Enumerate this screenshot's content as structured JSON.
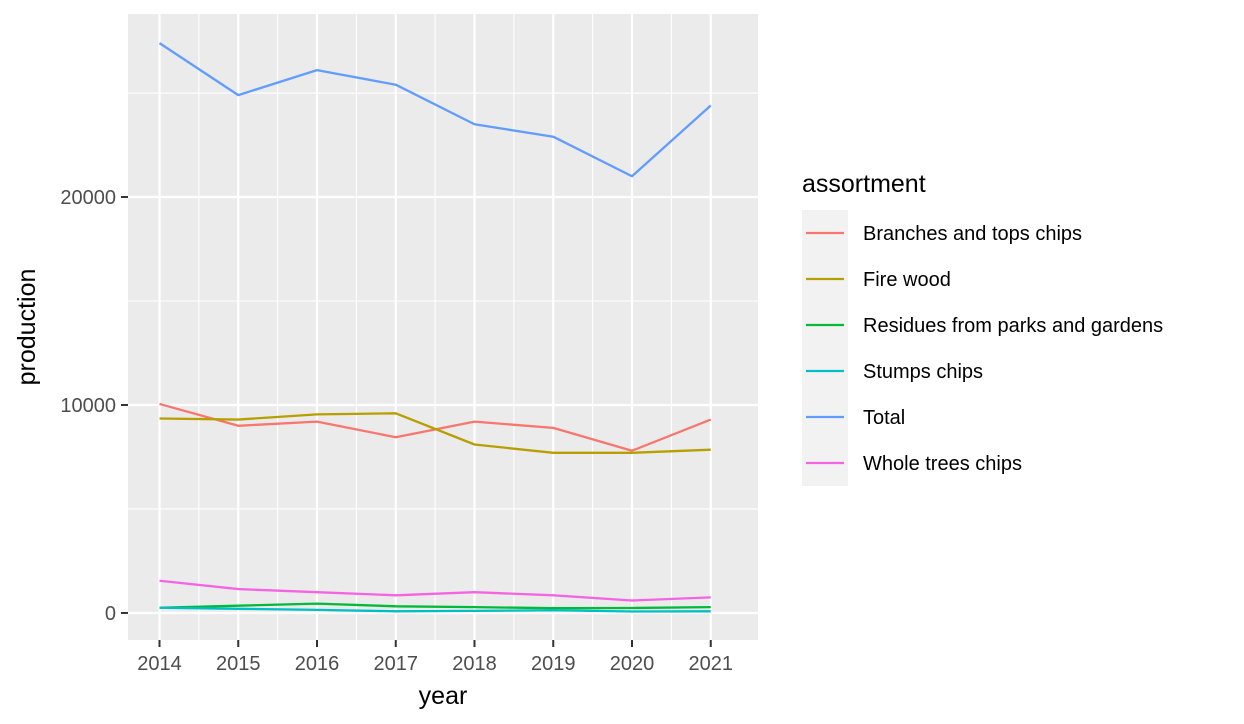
{
  "chart_data": {
    "type": "line",
    "xlabel": "year",
    "ylabel": "production",
    "x": [
      2014,
      2015,
      2016,
      2017,
      2018,
      2019,
      2020,
      2021
    ],
    "xlim": [
      2013.6,
      2021.6
    ],
    "ylim": [
      -1300,
      28800
    ],
    "y_ticks_major": [
      0,
      10000,
      20000
    ],
    "y_ticks_major_labels": [
      "0",
      "10000",
      "20000"
    ],
    "y_ticks_minor": [
      5000,
      15000,
      25000
    ],
    "x_tick_labels": [
      "2014",
      "2015",
      "2016",
      "2017",
      "2018",
      "2019",
      "2020",
      "2021"
    ],
    "grid": true,
    "legend": {
      "title": "assortment",
      "placement": "right"
    },
    "series": [
      {
        "name": "Branches and tops chips",
        "color": "#F8766D",
        "values": [
          10050,
          9000,
          9200,
          8450,
          9200,
          8900,
          7800,
          9300
        ]
      },
      {
        "name": "Fire wood",
        "color": "#B79F00",
        "values": [
          9350,
          9300,
          9550,
          9600,
          8100,
          7700,
          7700,
          7850
        ]
      },
      {
        "name": "Residues from parks and gardens",
        "color": "#00BA38",
        "values": [
          250,
          350,
          450,
          320,
          280,
          230,
          240,
          280
        ]
      },
      {
        "name": "Stumps chips",
        "color": "#00BFC4",
        "values": [
          250,
          200,
          150,
          80,
          100,
          130,
          70,
          80
        ]
      },
      {
        "name": "Total",
        "color": "#619CFF",
        "values": [
          27400,
          24900,
          26100,
          25400,
          23500,
          22900,
          21000,
          24400
        ]
      },
      {
        "name": "Whole trees chips",
        "color": "#F564E3",
        "values": [
          1550,
          1150,
          1000,
          850,
          1000,
          850,
          600,
          750
        ]
      }
    ]
  }
}
